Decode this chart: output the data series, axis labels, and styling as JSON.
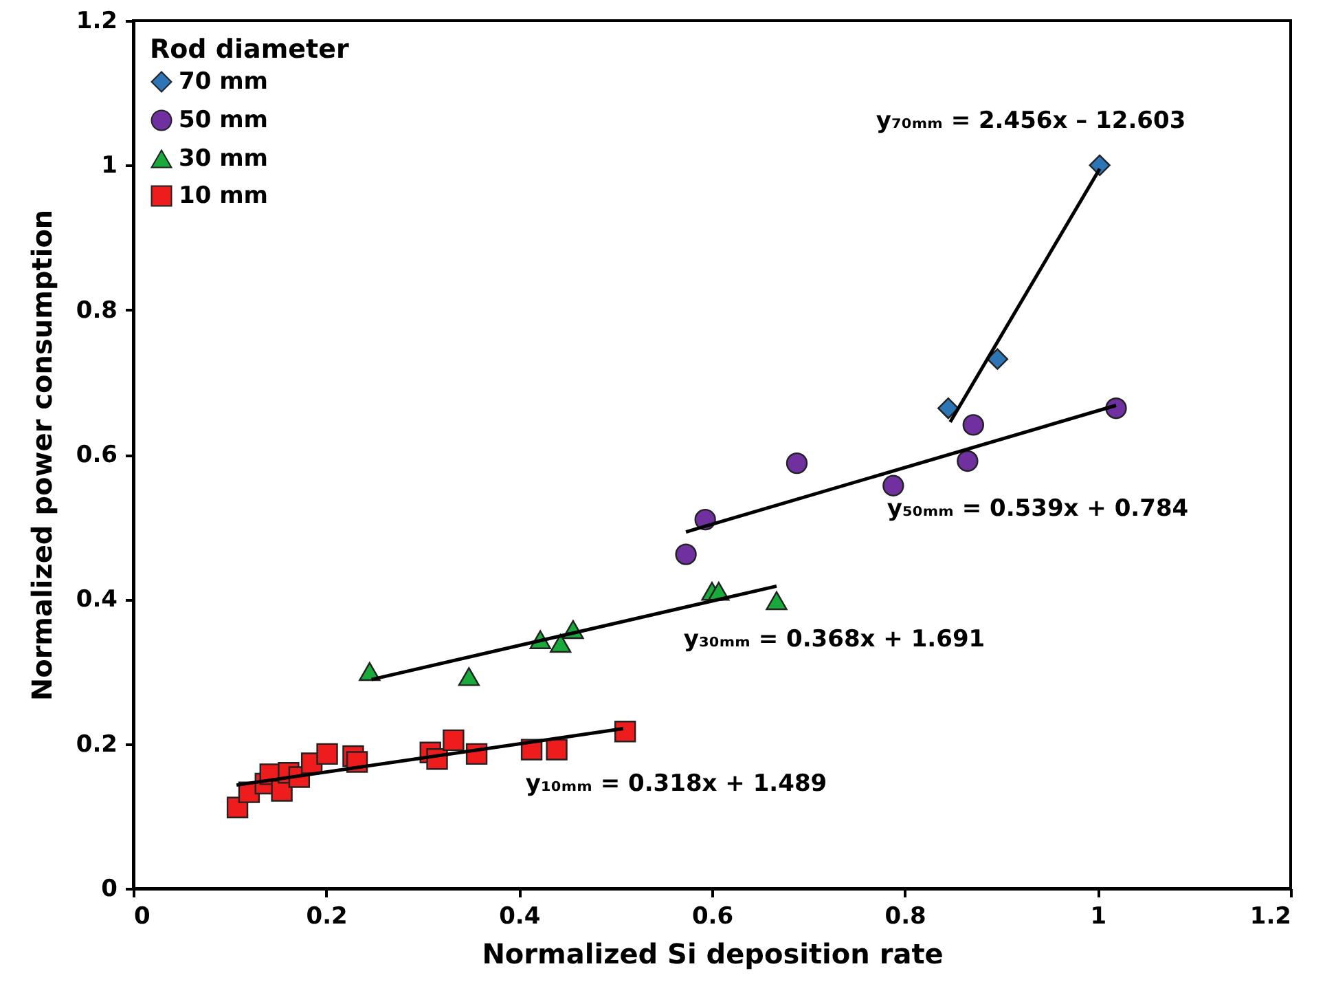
{
  "chart_data": {
    "type": "scatter",
    "xlabel": "Normalized Si deposition rate",
    "ylabel": "Normalized power consumption",
    "legend_title": "Rod diameter",
    "legend": "top left",
    "grid": false,
    "xlim": [
      0,
      1.2
    ],
    "ylim": [
      0,
      1.2
    ],
    "xticks": [
      0,
      0.2,
      0.4,
      0.6,
      0.8,
      1,
      1.2
    ],
    "yticks": [
      0,
      0.2,
      0.4,
      0.6,
      0.8,
      1,
      1.2
    ],
    "series": [
      {
        "name": "70 mm",
        "color": "#2e75b6",
        "marker": "diamond",
        "x": [
          1.002,
          0.896,
          0.845
        ],
        "values": [
          1.0,
          0.732,
          0.664
        ]
      },
      {
        "name": "50 mm",
        "color": "#7030a0",
        "marker": "circle",
        "x": [
          1.019,
          0.871,
          0.865,
          0.688,
          0.788,
          0.593,
          0.573
        ],
        "values": [
          0.664,
          0.641,
          0.591,
          0.588,
          0.557,
          0.51,
          0.462
        ]
      },
      {
        "name": "30 mm",
        "color": "#1aaa3c",
        "marker": "triangle",
        "x": [
          0.245,
          0.348,
          0.422,
          0.443,
          0.456,
          0.6,
          0.607,
          0.667
        ],
        "values": [
          0.3,
          0.293,
          0.344,
          0.339,
          0.358,
          0.411,
          0.411,
          0.398
        ]
      },
      {
        "name": "10 mm",
        "color": "#ee1c1c",
        "marker": "square",
        "x": [
          0.108,
          0.12,
          0.137,
          0.142,
          0.154,
          0.161,
          0.172,
          0.185,
          0.201,
          0.228,
          0.232,
          0.308,
          0.315,
          0.332,
          0.356,
          0.413,
          0.439,
          0.51
        ],
        "values": [
          0.112,
          0.133,
          0.145,
          0.158,
          0.135,
          0.16,
          0.154,
          0.173,
          0.186,
          0.183,
          0.175,
          0.188,
          0.179,
          0.205,
          0.186,
          0.192,
          0.192,
          0.217
        ]
      },
      {
        "type": "line",
        "color": "#000000",
        "x": [
          0.847,
          1.002
        ],
        "values": [
          0.645,
          0.995
        ]
      },
      {
        "type": "line",
        "color": "#000000",
        "x": [
          0.573,
          1.019
        ],
        "values": [
          0.493,
          0.668
        ]
      },
      {
        "type": "line",
        "color": "#000000",
        "x": [
          0.247,
          0.667
        ],
        "values": [
          0.289,
          0.418
        ]
      },
      {
        "type": "line",
        "color": "#000000",
        "x": [
          0.107,
          0.508
        ],
        "values": [
          0.143,
          0.221
        ]
      }
    ],
    "annotations": [
      "y₇₀ₘₘ = 2.456x – 12.603",
      "y₅₀ₘₘ = 0.539x + 0.784",
      "y₃₀ₘₘ = 0.368x + 1.691",
      "y₁₀ₘₘ = 0.318x + 1.489"
    ]
  }
}
